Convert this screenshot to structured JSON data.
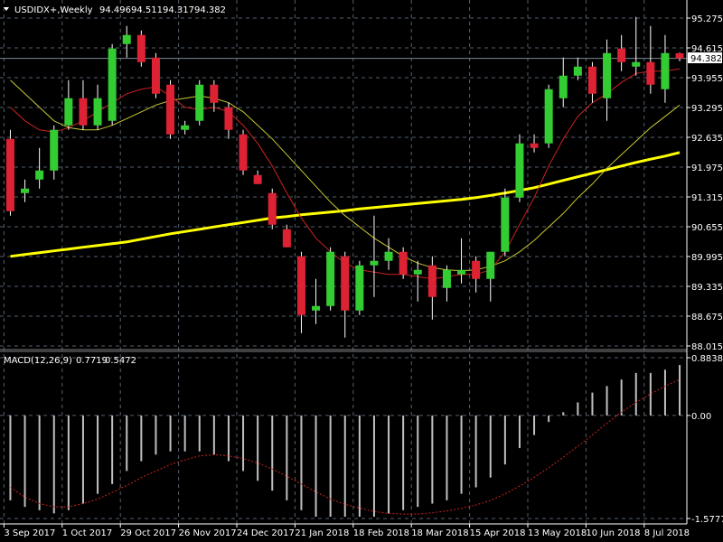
{
  "header": {
    "symbol": "USDIDX+,Weekly",
    "open": "94.496",
    "high": "94.511",
    "low": "94.317",
    "close": "94.382"
  },
  "current_price": "94.382",
  "macd": {
    "label": "MACD(12,26,9)",
    "main": "0.7719",
    "signal": "0.5472"
  },
  "colors": {
    "background": "#000000",
    "bull": "#33cc33",
    "bear": "#dd2233",
    "ma_slow": "#ffff00",
    "ma_mid": "#c8c832",
    "ma_fast": "#cc2222",
    "grid": "#55606e",
    "axis_text": "#ffffff",
    "macd_hist": "#c0c0c0",
    "macd_signal": "#cc2222"
  },
  "chart_data": [
    {
      "type": "candlestick",
      "title": "USDIDX+,Weekly",
      "y_ticks": [
        "95.275",
        "94.615",
        "93.955",
        "93.295",
        "92.635",
        "91.975",
        "91.315",
        "90.655",
        "89.995",
        "89.335",
        "88.675",
        "88.015"
      ],
      "x_ticks": [
        "3 Sep 2017",
        "1 Oct 2017",
        "29 Oct 2017",
        "26 Nov 2017",
        "24 Dec 2017",
        "21 Jan 2018",
        "18 Feb 2018",
        "18 Mar 2018",
        "15 Apr 2018",
        "13 May 2018",
        "10 Jun 2018",
        "8 Jul 2018"
      ],
      "ylim": [
        88.015,
        95.275
      ],
      "grid": true,
      "candles": [
        {
          "o": 92.6,
          "h": 92.8,
          "l": 90.9,
          "c": 91.0
        },
        {
          "o": 91.4,
          "h": 91.7,
          "l": 91.2,
          "c": 91.5
        },
        {
          "o": 91.7,
          "h": 92.4,
          "l": 91.5,
          "c": 91.9
        },
        {
          "o": 91.9,
          "h": 92.9,
          "l": 91.7,
          "c": 92.8
        },
        {
          "o": 92.9,
          "h": 93.9,
          "l": 92.8,
          "c": 93.5
        },
        {
          "o": 93.5,
          "h": 93.9,
          "l": 92.8,
          "c": 92.9
        },
        {
          "o": 92.9,
          "h": 93.8,
          "l": 92.8,
          "c": 93.5
        },
        {
          "o": 93.0,
          "h": 94.7,
          "l": 92.9,
          "c": 94.6
        },
        {
          "o": 94.7,
          "h": 95.1,
          "l": 94.4,
          "c": 94.9
        },
        {
          "o": 94.9,
          "h": 95.0,
          "l": 94.2,
          "c": 94.3
        },
        {
          "o": 94.4,
          "h": 94.5,
          "l": 93.5,
          "c": 93.6
        },
        {
          "o": 93.8,
          "h": 93.9,
          "l": 92.6,
          "c": 92.7
        },
        {
          "o": 92.8,
          "h": 93.0,
          "l": 92.7,
          "c": 92.9
        },
        {
          "o": 93.0,
          "h": 93.9,
          "l": 92.9,
          "c": 93.8
        },
        {
          "o": 93.8,
          "h": 93.9,
          "l": 93.2,
          "c": 93.4
        },
        {
          "o": 93.3,
          "h": 93.4,
          "l": 92.6,
          "c": 92.8
        },
        {
          "o": 92.7,
          "h": 92.8,
          "l": 91.8,
          "c": 91.9
        },
        {
          "o": 91.8,
          "h": 91.9,
          "l": 91.6,
          "c": 91.6
        },
        {
          "o": 91.4,
          "h": 91.5,
          "l": 90.6,
          "c": 90.7
        },
        {
          "o": 90.6,
          "h": 90.7,
          "l": 90.2,
          "c": 90.2
        },
        {
          "o": 90.0,
          "h": 90.1,
          "l": 88.3,
          "c": 88.7
        },
        {
          "o": 88.8,
          "h": 89.5,
          "l": 88.5,
          "c": 88.9
        },
        {
          "o": 88.9,
          "h": 90.2,
          "l": 88.8,
          "c": 90.1
        },
        {
          "o": 90.0,
          "h": 90.1,
          "l": 88.2,
          "c": 88.8
        },
        {
          "o": 88.8,
          "h": 89.9,
          "l": 88.7,
          "c": 89.8
        },
        {
          "o": 89.8,
          "h": 90.9,
          "l": 89.1,
          "c": 89.9
        },
        {
          "o": 89.9,
          "h": 90.4,
          "l": 89.7,
          "c": 90.1
        },
        {
          "o": 90.1,
          "h": 90.2,
          "l": 89.5,
          "c": 89.6
        },
        {
          "o": 89.6,
          "h": 89.9,
          "l": 89.0,
          "c": 89.7
        },
        {
          "o": 89.8,
          "h": 90.0,
          "l": 88.6,
          "c": 89.1
        },
        {
          "o": 89.3,
          "h": 89.8,
          "l": 89.0,
          "c": 89.7
        },
        {
          "o": 89.6,
          "h": 90.4,
          "l": 89.4,
          "c": 89.7
        },
        {
          "o": 89.9,
          "h": 90.0,
          "l": 89.2,
          "c": 89.5
        },
        {
          "o": 89.5,
          "h": 90.1,
          "l": 89.0,
          "c": 90.1
        },
        {
          "o": 90.1,
          "h": 91.5,
          "l": 90.0,
          "c": 91.3
        },
        {
          "o": 91.3,
          "h": 92.7,
          "l": 91.2,
          "c": 92.5
        },
        {
          "o": 92.5,
          "h": 92.7,
          "l": 92.3,
          "c": 92.4
        },
        {
          "o": 92.5,
          "h": 93.8,
          "l": 92.4,
          "c": 93.7
        },
        {
          "o": 93.5,
          "h": 94.4,
          "l": 93.3,
          "c": 94.0
        },
        {
          "o": 94.0,
          "h": 94.4,
          "l": 93.9,
          "c": 94.2
        },
        {
          "o": 94.2,
          "h": 94.3,
          "l": 93.4,
          "c": 93.6
        },
        {
          "o": 93.5,
          "h": 94.8,
          "l": 93.0,
          "c": 94.5
        },
        {
          "o": 94.6,
          "h": 94.9,
          "l": 94.1,
          "c": 94.3
        },
        {
          "o": 94.2,
          "h": 95.3,
          "l": 94.0,
          "c": 94.3
        },
        {
          "o": 94.3,
          "h": 95.1,
          "l": 93.6,
          "c": 93.8
        },
        {
          "o": 93.7,
          "h": 94.9,
          "l": 93.4,
          "c": 94.5
        },
        {
          "o": 94.496,
          "h": 94.511,
          "l": 94.317,
          "c": 94.382
        }
      ],
      "overlays": [
        {
          "color": "ma_slow",
          "values": [
            90.0,
            90.04,
            90.08,
            90.12,
            90.16,
            90.2,
            90.24,
            90.28,
            90.32,
            90.38,
            90.44,
            90.5,
            90.55,
            90.6,
            90.65,
            90.7,
            90.75,
            90.8,
            90.85,
            90.88,
            90.92,
            90.95,
            90.98,
            91.01,
            91.05,
            91.08,
            91.11,
            91.14,
            91.17,
            91.2,
            91.23,
            91.26,
            91.3,
            91.35,
            91.4,
            91.46,
            91.52,
            91.6,
            91.68,
            91.76,
            91.84,
            91.92,
            92.0,
            92.08,
            92.15,
            92.22,
            92.3
          ]
        },
        {
          "color": "ma_mid",
          "values": [
            93.9,
            93.6,
            93.3,
            93.0,
            92.85,
            92.8,
            92.8,
            92.9,
            93.05,
            93.2,
            93.35,
            93.45,
            93.5,
            93.55,
            93.5,
            93.4,
            93.2,
            92.9,
            92.6,
            92.25,
            91.9,
            91.55,
            91.2,
            90.9,
            90.65,
            90.4,
            90.2,
            90.0,
            89.85,
            89.75,
            89.7,
            89.68,
            89.7,
            89.78,
            89.9,
            90.1,
            90.35,
            90.65,
            90.95,
            91.3,
            91.6,
            91.95,
            92.25,
            92.55,
            92.85,
            93.1,
            93.35
          ]
        },
        {
          "color": "ma_fast",
          "values": [
            93.3,
            93.0,
            92.8,
            92.75,
            92.85,
            93.0,
            93.2,
            93.4,
            93.6,
            93.7,
            93.75,
            93.55,
            93.3,
            93.25,
            93.3,
            93.2,
            92.9,
            92.5,
            92.0,
            91.4,
            90.85,
            90.4,
            90.1,
            89.85,
            89.7,
            89.65,
            89.6,
            89.6,
            89.55,
            89.5,
            89.55,
            89.6,
            89.6,
            89.7,
            90.1,
            90.7,
            91.3,
            92.0,
            92.6,
            93.1,
            93.4,
            93.6,
            93.85,
            94.05,
            94.1,
            94.1,
            94.15
          ]
        }
      ]
    },
    {
      "type": "histogram",
      "title": "MACD(12,26,9)",
      "y_ticks": [
        "0.8838",
        "0.00",
        "-1.5777"
      ],
      "ylim": [
        -1.5777,
        0.8838
      ],
      "histogram": [
        -1.3,
        -1.4,
        -1.45,
        -1.5,
        -1.45,
        -1.35,
        -1.2,
        -1.05,
        -0.85,
        -0.7,
        -0.6,
        -0.55,
        -0.55,
        -0.55,
        -0.6,
        -0.7,
        -0.85,
        -1.0,
        -1.15,
        -1.3,
        -1.45,
        -1.55,
        -1.55,
        -1.55,
        -1.55,
        -1.55,
        -1.5,
        -1.45,
        -1.4,
        -1.35,
        -1.3,
        -1.2,
        -1.1,
        -0.95,
        -0.75,
        -0.5,
        -0.3,
        -0.1,
        0.05,
        0.2,
        0.35,
        0.45,
        0.55,
        0.65,
        0.65,
        0.7,
        0.7719
      ],
      "signal": [
        -1.1,
        -1.25,
        -1.35,
        -1.4,
        -1.4,
        -1.35,
        -1.28,
        -1.18,
        -1.07,
        -0.95,
        -0.85,
        -0.75,
        -0.68,
        -0.62,
        -0.6,
        -0.62,
        -0.66,
        -0.73,
        -0.82,
        -0.93,
        -1.05,
        -1.17,
        -1.28,
        -1.36,
        -1.42,
        -1.47,
        -1.5,
        -1.51,
        -1.51,
        -1.49,
        -1.46,
        -1.42,
        -1.37,
        -1.3,
        -1.2,
        -1.08,
        -0.95,
        -0.8,
        -0.64,
        -0.47,
        -0.3,
        -0.12,
        0.05,
        0.2,
        0.33,
        0.45,
        0.5472
      ]
    }
  ]
}
